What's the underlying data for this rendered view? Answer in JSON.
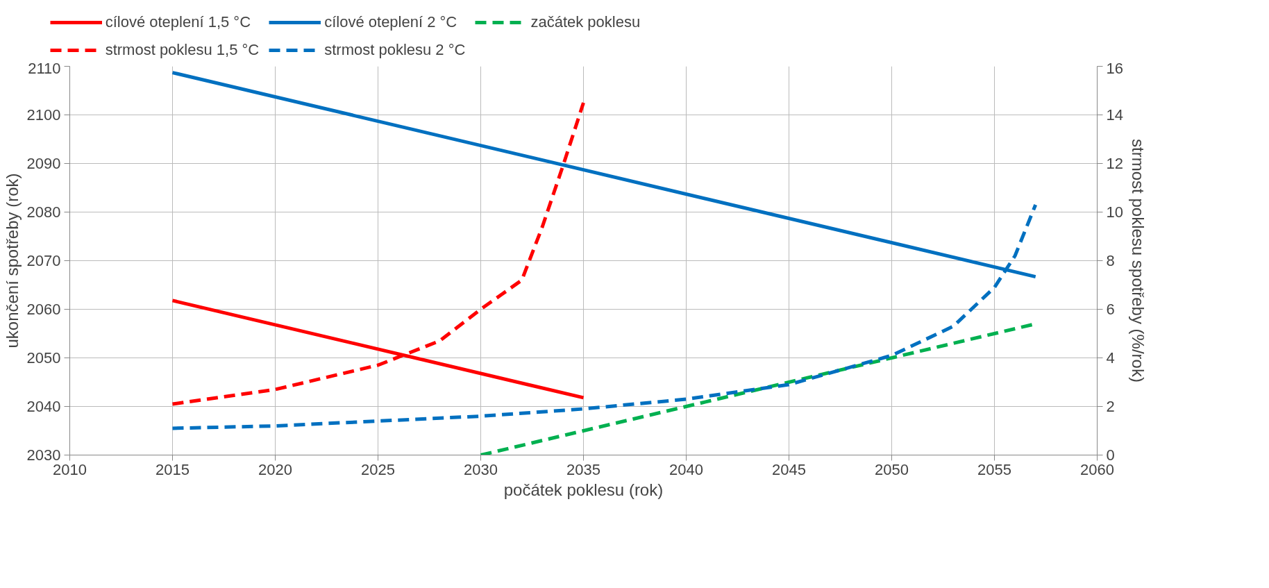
{
  "chart_data": {
    "type": "line",
    "xlabel": "počátek poklesu (rok)",
    "ylabel": "ukončení spotřeby (rok)",
    "y2label": "strmost poklesu spotřeby (%/rok)",
    "xlim": [
      2010,
      2060
    ],
    "xticks": [
      2010,
      2015,
      2020,
      2025,
      2030,
      2035,
      2040,
      2045,
      2050,
      2055,
      2060
    ],
    "ylim": [
      2030,
      2110
    ],
    "yticks": [
      2030,
      2040,
      2050,
      2060,
      2070,
      2080,
      2090,
      2100,
      2110
    ],
    "y2lim": [
      0,
      16
    ],
    "y2ticks": [
      0,
      2,
      4,
      6,
      8,
      10,
      12,
      14,
      16
    ],
    "grid": true,
    "legend": "top",
    "marker": "none",
    "series": [
      {
        "name": "cílové oteplení 1,5 °C",
        "color": "#ff0000",
        "line_style": "solid",
        "x": [
          2015,
          2035
        ],
        "values": [
          2061.8,
          2041.8
        ]
      },
      {
        "name": "cílové oteplení 2 °C",
        "color": "#0070c0",
        "line_style": "solid",
        "x": [
          2015,
          2057
        ],
        "values": [
          2108.7,
          2066.7
        ]
      },
      {
        "name": "začátek poklesu",
        "color": "#00b050",
        "line_style": "dashed",
        "axis": "y2",
        "x": [
          2030,
          2035,
          2040,
          2045,
          2050,
          2055,
          2057
        ],
        "values": [
          0,
          1,
          2,
          3,
          4,
          5,
          5.4
        ]
      },
      {
        "name": "strmost poklesu 1,5 °C",
        "color": "#ff0000",
        "line_style": "dashed",
        "axis": "y2",
        "x": [
          2015,
          2020,
          2025,
          2028,
          2030,
          2031,
          2032,
          2033,
          2034,
          2035
        ],
        "values": [
          2.1,
          2.7,
          3.7,
          4.7,
          6.0,
          6.6,
          7.2,
          9.4,
          11.9,
          14.5
        ]
      },
      {
        "name": "strmost poklesu 2 °C",
        "color": "#0070c0",
        "line_style": "dashed",
        "axis": "y2",
        "x": [
          2015,
          2020,
          2025,
          2030,
          2035,
          2040,
          2045,
          2050,
          2053,
          2055,
          2056,
          2057
        ],
        "values": [
          1.1,
          1.2,
          1.4,
          1.6,
          1.9,
          2.3,
          2.9,
          4.1,
          5.3,
          6.9,
          8.2,
          10.3
        ]
      }
    ]
  }
}
